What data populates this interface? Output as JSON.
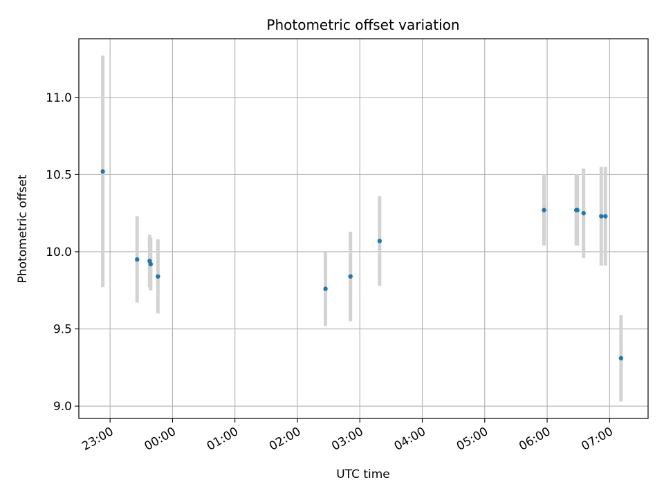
{
  "chart_data": {
    "type": "scatter",
    "title": "Photometric offset variation",
    "xlabel": "UTC time",
    "ylabel": "Photometric offset",
    "x_tick_labels": [
      "23:00",
      "00:00",
      "01:00",
      "02:00",
      "03:00",
      "04:00",
      "05:00",
      "06:00",
      "07:00"
    ],
    "y_tick_labels": [
      "9.0",
      "9.5",
      "10.0",
      "10.5",
      "11.0"
    ],
    "y_ticks": [
      9.0,
      9.5,
      10.0,
      10.5,
      11.0
    ],
    "ylim": [
      8.92,
      11.38
    ],
    "xlim": [
      "22:30",
      "07:37"
    ],
    "grid": true,
    "marker_color": "#1f77b4",
    "errorbar_color": "#d3d3d3",
    "points": [
      {
        "x": "22:53",
        "y": 10.52,
        "err": 0.75
      },
      {
        "x": "23:26",
        "y": 9.95,
        "err": 0.28
      },
      {
        "x": "23:38",
        "y": 9.94,
        "err": 0.17
      },
      {
        "x": "23:39",
        "y": 9.92,
        "err": 0.17
      },
      {
        "x": "23:46",
        "y": 9.84,
        "err": 0.24
      },
      {
        "x": "02:27",
        "y": 9.76,
        "err": 0.24
      },
      {
        "x": "02:51",
        "y": 9.84,
        "err": 0.29
      },
      {
        "x": "03:19",
        "y": 10.07,
        "err": 0.29
      },
      {
        "x": "05:57",
        "y": 10.27,
        "err": 0.23
      },
      {
        "x": "06:28",
        "y": 10.27,
        "err": 0.23
      },
      {
        "x": "06:29",
        "y": 10.27,
        "err": 0.23
      },
      {
        "x": "06:35",
        "y": 10.25,
        "err": 0.29
      },
      {
        "x": "06:52",
        "y": 10.23,
        "err": 0.32
      },
      {
        "x": "06:56",
        "y": 10.23,
        "err": 0.32
      },
      {
        "x": "07:11",
        "y": 9.31,
        "err": 0.28
      }
    ]
  }
}
